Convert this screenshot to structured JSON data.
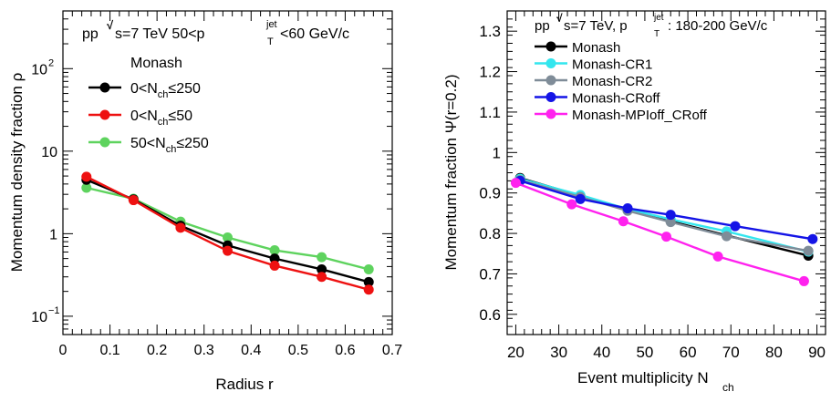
{
  "chart_data": [
    {
      "type": "line",
      "title": "",
      "xlabel": "Radius r",
      "ylabel": "Momentum density fraction ρ",
      "xlim": [
        0,
        0.7
      ],
      "ylim": [
        0.06,
        500
      ],
      "yscale": "log",
      "xticks": [
        "0",
        "0.1",
        "0.2",
        "0.3",
        "0.4",
        "0.5",
        "0.6",
        "0.7"
      ],
      "yticks": [
        {
          "value": 0.1,
          "base": "10",
          "exp": "−1"
        },
        {
          "value": 1,
          "base": "1",
          "exp": ""
        },
        {
          "value": 10,
          "base": "10",
          "exp": ""
        },
        {
          "value": 100,
          "base": "10",
          "exp": "2"
        }
      ],
      "annotation": {
        "prefix": "pp ",
        "energy": "s=7 TeV 50<p",
        "sub": "T",
        "sup": "jet",
        "suffix": "<60 GeV/c"
      },
      "legend_title": "Monash",
      "legend_placement": "top-left",
      "x": [
        0.05,
        0.15,
        0.25,
        0.35,
        0.45,
        0.55,
        0.65
      ],
      "series": [
        {
          "name": "0<N_ch≤250",
          "label_parts": [
            "0<N",
            "ch",
            "≤250"
          ],
          "color": "#000000",
          "values": [
            4.5,
            2.6,
            1.25,
            0.72,
            0.5,
            0.37,
            0.26
          ]
        },
        {
          "name": "0<N_ch≤50",
          "label_parts": [
            "0<N",
            "ch",
            "≤50"
          ],
          "color": "#ee1111",
          "values": [
            4.9,
            2.55,
            1.18,
            0.62,
            0.41,
            0.3,
            0.21
          ]
        },
        {
          "name": "50<N_ch≤250",
          "label_parts": [
            "50<N",
            "ch",
            "≤250"
          ],
          "color": "#5ed35e",
          "values": [
            3.6,
            2.65,
            1.4,
            0.9,
            0.63,
            0.52,
            0.37
          ]
        }
      ]
    },
    {
      "type": "line",
      "title": "",
      "xlabel": "Event multiplicity N",
      "xlabel_sub": "ch",
      "ylabel": "Momentum fraction Ψ(r=0.2)",
      "xlim": [
        18,
        92
      ],
      "ylim": [
        0.55,
        1.35
      ],
      "xticks": [
        "20",
        "30",
        "40",
        "50",
        "60",
        "70",
        "80",
        "90"
      ],
      "yticks": [
        "0.6",
        "0.7",
        "0.8",
        "0.9",
        "1",
        "1.1",
        "1.2",
        "1.3"
      ],
      "annotation": {
        "prefix": "pp ",
        "energy": "s=7 TeV, p",
        "sub": "T",
        "sup": "jet",
        "suffix": ": 180-200 GeV/c"
      },
      "legend_placement": "top-left",
      "series": [
        {
          "name": "Monash",
          "color": "#000000",
          "x": [
            21,
            35,
            46,
            56,
            69,
            88
          ],
          "values": [
            0.937,
            0.893,
            0.857,
            0.83,
            0.795,
            0.745
          ]
        },
        {
          "name": "Monash-CR1",
          "color": "#33e6ee",
          "x": [
            21,
            35,
            46,
            56,
            69,
            88
          ],
          "values": [
            0.935,
            0.895,
            0.86,
            0.835,
            0.805,
            0.755
          ]
        },
        {
          "name": "Monash-CR2",
          "color": "#7f8c98",
          "x": [
            21,
            35,
            46,
            56,
            69,
            88
          ],
          "values": [
            0.932,
            0.89,
            0.856,
            0.828,
            0.793,
            0.757
          ]
        },
        {
          "name": "Monash-CRoff",
          "color": "#1414e6",
          "x": [
            21,
            35,
            46,
            56,
            71,
            89
          ],
          "values": [
            0.93,
            0.885,
            0.862,
            0.846,
            0.818,
            0.786
          ]
        },
        {
          "name": "Monash-MPIoff_CRoff",
          "color": "#ff22ee",
          "x": [
            20,
            33,
            45,
            55,
            67,
            87
          ],
          "values": [
            0.925,
            0.872,
            0.83,
            0.792,
            0.743,
            0.682
          ]
        }
      ]
    }
  ]
}
